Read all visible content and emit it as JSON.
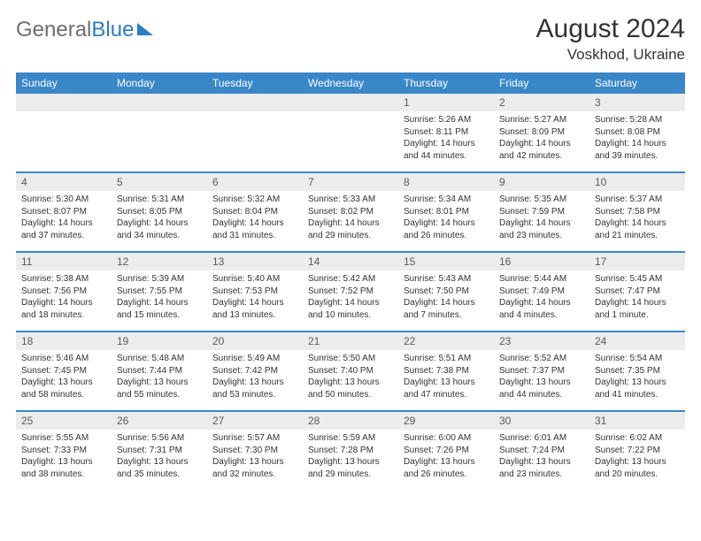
{
  "logo": {
    "part1": "General",
    "part2": "Blue"
  },
  "title": "August 2024",
  "location": "Voskhod, Ukraine",
  "colors": {
    "header_bg": "#3a87c8",
    "date_bg": "#ececec",
    "text": "#333333",
    "logo_gray": "#6e6e6e",
    "logo_blue": "#2b7bbf"
  },
  "dayHeaders": [
    "Sunday",
    "Monday",
    "Tuesday",
    "Wednesday",
    "Thursday",
    "Friday",
    "Saturday"
  ],
  "weeks": [
    [
      {
        "date": "",
        "lines": []
      },
      {
        "date": "",
        "lines": []
      },
      {
        "date": "",
        "lines": []
      },
      {
        "date": "",
        "lines": []
      },
      {
        "date": "1",
        "lines": [
          "Sunrise: 5:26 AM",
          "Sunset: 8:11 PM",
          "Daylight: 14 hours",
          "and 44 minutes."
        ]
      },
      {
        "date": "2",
        "lines": [
          "Sunrise: 5:27 AM",
          "Sunset: 8:09 PM",
          "Daylight: 14 hours",
          "and 42 minutes."
        ]
      },
      {
        "date": "3",
        "lines": [
          "Sunrise: 5:28 AM",
          "Sunset: 8:08 PM",
          "Daylight: 14 hours",
          "and 39 minutes."
        ]
      }
    ],
    [
      {
        "date": "4",
        "lines": [
          "Sunrise: 5:30 AM",
          "Sunset: 8:07 PM",
          "Daylight: 14 hours",
          "and 37 minutes."
        ]
      },
      {
        "date": "5",
        "lines": [
          "Sunrise: 5:31 AM",
          "Sunset: 8:05 PM",
          "Daylight: 14 hours",
          "and 34 minutes."
        ]
      },
      {
        "date": "6",
        "lines": [
          "Sunrise: 5:32 AM",
          "Sunset: 8:04 PM",
          "Daylight: 14 hours",
          "and 31 minutes."
        ]
      },
      {
        "date": "7",
        "lines": [
          "Sunrise: 5:33 AM",
          "Sunset: 8:02 PM",
          "Daylight: 14 hours",
          "and 29 minutes."
        ]
      },
      {
        "date": "8",
        "lines": [
          "Sunrise: 5:34 AM",
          "Sunset: 8:01 PM",
          "Daylight: 14 hours",
          "and 26 minutes."
        ]
      },
      {
        "date": "9",
        "lines": [
          "Sunrise: 5:35 AM",
          "Sunset: 7:59 PM",
          "Daylight: 14 hours",
          "and 23 minutes."
        ]
      },
      {
        "date": "10",
        "lines": [
          "Sunrise: 5:37 AM",
          "Sunset: 7:58 PM",
          "Daylight: 14 hours",
          "and 21 minutes."
        ]
      }
    ],
    [
      {
        "date": "11",
        "lines": [
          "Sunrise: 5:38 AM",
          "Sunset: 7:56 PM",
          "Daylight: 14 hours",
          "and 18 minutes."
        ]
      },
      {
        "date": "12",
        "lines": [
          "Sunrise: 5:39 AM",
          "Sunset: 7:55 PM",
          "Daylight: 14 hours",
          "and 15 minutes."
        ]
      },
      {
        "date": "13",
        "lines": [
          "Sunrise: 5:40 AM",
          "Sunset: 7:53 PM",
          "Daylight: 14 hours",
          "and 13 minutes."
        ]
      },
      {
        "date": "14",
        "lines": [
          "Sunrise: 5:42 AM",
          "Sunset: 7:52 PM",
          "Daylight: 14 hours",
          "and 10 minutes."
        ]
      },
      {
        "date": "15",
        "lines": [
          "Sunrise: 5:43 AM",
          "Sunset: 7:50 PM",
          "Daylight: 14 hours",
          "and 7 minutes."
        ]
      },
      {
        "date": "16",
        "lines": [
          "Sunrise: 5:44 AM",
          "Sunset: 7:49 PM",
          "Daylight: 14 hours",
          "and 4 minutes."
        ]
      },
      {
        "date": "17",
        "lines": [
          "Sunrise: 5:45 AM",
          "Sunset: 7:47 PM",
          "Daylight: 14 hours",
          "and 1 minute."
        ]
      }
    ],
    [
      {
        "date": "18",
        "lines": [
          "Sunrise: 5:46 AM",
          "Sunset: 7:45 PM",
          "Daylight: 13 hours",
          "and 58 minutes."
        ]
      },
      {
        "date": "19",
        "lines": [
          "Sunrise: 5:48 AM",
          "Sunset: 7:44 PM",
          "Daylight: 13 hours",
          "and 55 minutes."
        ]
      },
      {
        "date": "20",
        "lines": [
          "Sunrise: 5:49 AM",
          "Sunset: 7:42 PM",
          "Daylight: 13 hours",
          "and 53 minutes."
        ]
      },
      {
        "date": "21",
        "lines": [
          "Sunrise: 5:50 AM",
          "Sunset: 7:40 PM",
          "Daylight: 13 hours",
          "and 50 minutes."
        ]
      },
      {
        "date": "22",
        "lines": [
          "Sunrise: 5:51 AM",
          "Sunset: 7:38 PM",
          "Daylight: 13 hours",
          "and 47 minutes."
        ]
      },
      {
        "date": "23",
        "lines": [
          "Sunrise: 5:52 AM",
          "Sunset: 7:37 PM",
          "Daylight: 13 hours",
          "and 44 minutes."
        ]
      },
      {
        "date": "24",
        "lines": [
          "Sunrise: 5:54 AM",
          "Sunset: 7:35 PM",
          "Daylight: 13 hours",
          "and 41 minutes."
        ]
      }
    ],
    [
      {
        "date": "25",
        "lines": [
          "Sunrise: 5:55 AM",
          "Sunset: 7:33 PM",
          "Daylight: 13 hours",
          "and 38 minutes."
        ]
      },
      {
        "date": "26",
        "lines": [
          "Sunrise: 5:56 AM",
          "Sunset: 7:31 PM",
          "Daylight: 13 hours",
          "and 35 minutes."
        ]
      },
      {
        "date": "27",
        "lines": [
          "Sunrise: 5:57 AM",
          "Sunset: 7:30 PM",
          "Daylight: 13 hours",
          "and 32 minutes."
        ]
      },
      {
        "date": "28",
        "lines": [
          "Sunrise: 5:59 AM",
          "Sunset: 7:28 PM",
          "Daylight: 13 hours",
          "and 29 minutes."
        ]
      },
      {
        "date": "29",
        "lines": [
          "Sunrise: 6:00 AM",
          "Sunset: 7:26 PM",
          "Daylight: 13 hours",
          "and 26 minutes."
        ]
      },
      {
        "date": "30",
        "lines": [
          "Sunrise: 6:01 AM",
          "Sunset: 7:24 PM",
          "Daylight: 13 hours",
          "and 23 minutes."
        ]
      },
      {
        "date": "31",
        "lines": [
          "Sunrise: 6:02 AM",
          "Sunset: 7:22 PM",
          "Daylight: 13 hours",
          "and 20 minutes."
        ]
      }
    ]
  ]
}
